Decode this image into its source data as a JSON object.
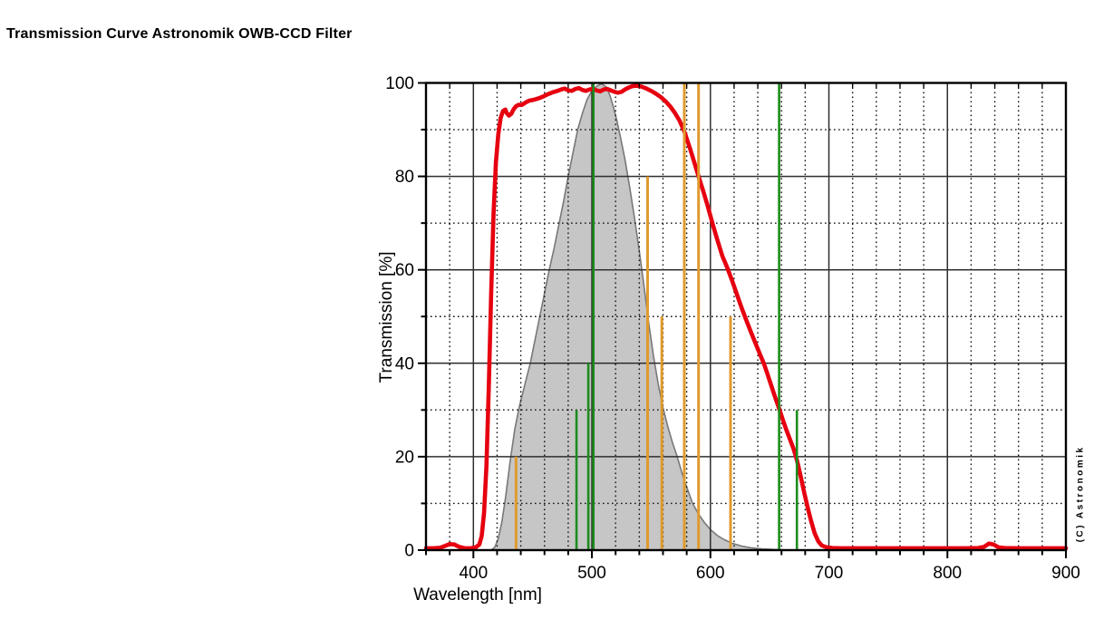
{
  "page": {
    "title": "Transmission Curve Astronomik OWB-CCD Filter",
    "copyright": "(C) Astronomik"
  },
  "chart_data": {
    "type": "line",
    "title": "Transmission Curve Astronomik OWB-CCD Filter",
    "xlabel": "Wavelength [nm]",
    "ylabel": "Transmission [%]",
    "xlim": [
      360,
      900
    ],
    "ylim": [
      0,
      100
    ],
    "x_major_ticks": [
      400,
      500,
      600,
      700,
      800,
      900
    ],
    "x_minor_step": 20,
    "y_major_ticks": [
      0,
      20,
      40,
      60,
      80,
      100
    ],
    "y_minor_step": 10,
    "grid": {
      "major": "solid",
      "minor": "dotted"
    },
    "legend": "none",
    "colors": {
      "red": "#e60010",
      "orange": "#e09a2e",
      "green": "#1d8c1d",
      "gray_fill": "#c6c6c6",
      "gray_stroke": "#787878",
      "grid_major": "#2e2e2e",
      "frame": "#000000"
    },
    "series": [
      {
        "name": "eye-sensitivity-curve",
        "type": "area",
        "fill": "#c6c6c6",
        "stroke": "#787878",
        "points": [
          [
            415,
            0
          ],
          [
            418,
            0.6
          ],
          [
            421,
            2.5
          ],
          [
            424,
            6
          ],
          [
            427,
            11
          ],
          [
            431,
            19
          ],
          [
            435,
            26
          ],
          [
            439,
            31
          ],
          [
            443,
            35
          ],
          [
            448,
            40
          ],
          [
            452,
            45
          ],
          [
            456,
            50
          ],
          [
            460,
            55
          ],
          [
            464,
            60
          ],
          [
            468,
            64.5
          ],
          [
            472,
            69.5
          ],
          [
            476,
            74.5
          ],
          [
            480,
            80
          ],
          [
            484,
            85
          ],
          [
            488,
            90
          ],
          [
            492,
            93.5
          ],
          [
            496,
            96.5
          ],
          [
            500,
            98.3
          ],
          [
            504,
            99.3
          ],
          [
            508,
            99.8
          ],
          [
            512,
            99.2
          ],
          [
            515,
            97.5
          ],
          [
            518,
            95
          ],
          [
            521,
            92
          ],
          [
            524,
            88.5
          ],
          [
            528,
            83.5
          ],
          [
            532,
            77.5
          ],
          [
            536,
            71
          ],
          [
            540,
            64
          ],
          [
            544,
            56.5
          ],
          [
            548,
            48.5
          ],
          [
            552,
            41.5
          ],
          [
            556,
            35.5
          ],
          [
            560,
            30.5
          ],
          [
            564,
            26.5
          ],
          [
            568,
            23
          ],
          [
            572,
            20
          ],
          [
            576,
            16.5
          ],
          [
            580,
            13.5
          ],
          [
            585,
            10
          ],
          [
            590,
            7.7
          ],
          [
            595,
            5.9
          ],
          [
            600,
            4.4
          ],
          [
            606,
            3.1
          ],
          [
            612,
            2.2
          ],
          [
            618,
            1.5
          ],
          [
            626,
            0.9
          ],
          [
            634,
            0.5
          ],
          [
            644,
            0.25
          ],
          [
            656,
            0.1
          ],
          [
            668,
            0
          ]
        ]
      },
      {
        "name": "filter-transmission",
        "type": "line",
        "color": "#e60010",
        "width": 4.6,
        "points": [
          [
            360,
            0.4
          ],
          [
            366,
            0.4
          ],
          [
            372,
            0.5
          ],
          [
            376,
            0.9
          ],
          [
            380,
            1.3
          ],
          [
            384,
            1.2
          ],
          [
            388,
            0.7
          ],
          [
            393,
            0.4
          ],
          [
            398,
            0.4
          ],
          [
            402,
            0.6
          ],
          [
            405,
            1.2
          ],
          [
            407,
            3
          ],
          [
            409,
            8
          ],
          [
            411,
            18
          ],
          [
            413,
            35
          ],
          [
            415,
            55
          ],
          [
            417,
            72
          ],
          [
            419,
            83
          ],
          [
            421,
            89
          ],
          [
            423,
            92.5
          ],
          [
            425,
            94
          ],
          [
            427,
            94.3
          ],
          [
            428,
            93.6
          ],
          [
            430,
            93
          ],
          [
            432,
            93.4
          ],
          [
            434,
            94.4
          ],
          [
            436,
            95
          ],
          [
            438,
            95.3
          ],
          [
            441,
            95.3
          ],
          [
            444,
            95.8
          ],
          [
            447,
            96.2
          ],
          [
            451,
            96.4
          ],
          [
            455,
            96.7
          ],
          [
            459,
            97.1
          ],
          [
            463,
            97.6
          ],
          [
            467,
            98
          ],
          [
            471,
            98.3
          ],
          [
            474,
            98.6
          ],
          [
            477,
            98.8
          ],
          [
            480,
            98.4
          ],
          [
            483,
            98.3
          ],
          [
            486,
            98.7
          ],
          [
            489,
            98.9
          ],
          [
            492,
            98.5
          ],
          [
            495,
            98.3
          ],
          [
            498,
            98.6
          ],
          [
            501,
            98.7
          ],
          [
            504,
            98.4
          ],
          [
            507,
            98.2
          ],
          [
            510,
            98.6
          ],
          [
            513,
            98.7
          ],
          [
            516,
            98.4
          ],
          [
            519,
            98.1
          ],
          [
            522,
            97.9
          ],
          [
            525,
            98.1
          ],
          [
            528,
            98.6
          ],
          [
            531,
            99
          ],
          [
            534,
            99.3
          ],
          [
            538,
            99.4
          ],
          [
            542,
            99.2
          ],
          [
            546,
            98.8
          ],
          [
            550,
            98.3
          ],
          [
            554,
            97.7
          ],
          [
            558,
            97
          ],
          [
            562,
            96.1
          ],
          [
            566,
            95
          ],
          [
            570,
            93.6
          ],
          [
            574,
            91.9
          ],
          [
            578,
            89.6
          ],
          [
            583,
            85.8
          ],
          [
            587,
            82.5
          ],
          [
            590,
            80
          ],
          [
            594,
            76.8
          ],
          [
            598,
            73.4
          ],
          [
            602,
            69.7
          ],
          [
            606,
            66.3
          ],
          [
            610,
            63
          ],
          [
            614,
            60.6
          ],
          [
            618,
            57.9
          ],
          [
            622,
            55
          ],
          [
            626,
            52.1
          ],
          [
            630,
            49.4
          ],
          [
            634,
            46.8
          ],
          [
            638,
            44.3
          ],
          [
            642,
            41.8
          ],
          [
            645,
            40
          ],
          [
            648,
            37.8
          ],
          [
            651,
            35.5
          ],
          [
            654,
            33.2
          ],
          [
            658,
            30.3
          ],
          [
            661,
            28
          ],
          [
            664,
            25.8
          ],
          [
            667,
            23.8
          ],
          [
            670,
            21.8
          ],
          [
            673,
            19.3
          ],
          [
            676,
            16
          ],
          [
            679,
            12.5
          ],
          [
            682,
            9.2
          ],
          [
            685,
            6.2
          ],
          [
            688,
            3.6
          ],
          [
            691,
            1.9
          ],
          [
            694,
            1
          ],
          [
            698,
            0.6
          ],
          [
            703,
            0.45
          ],
          [
            710,
            0.4
          ],
          [
            730,
            0.4
          ],
          [
            760,
            0.4
          ],
          [
            790,
            0.4
          ],
          [
            815,
            0.4
          ],
          [
            826,
            0.45
          ],
          [
            831,
            0.7
          ],
          [
            835,
            1.4
          ],
          [
            839,
            1.2
          ],
          [
            843,
            0.6
          ],
          [
            848,
            0.45
          ],
          [
            860,
            0.4
          ],
          [
            880,
            0.4
          ],
          [
            900,
            0.4
          ]
        ]
      }
    ],
    "emission_lines": [
      {
        "wavelength": 436,
        "height": 20,
        "color": "orange"
      },
      {
        "wavelength": 487,
        "height": 30,
        "color": "green"
      },
      {
        "wavelength": 497,
        "height": 40,
        "color": "green"
      },
      {
        "wavelength": 501.3,
        "height": 100,
        "color": "green"
      },
      {
        "wavelength": 547,
        "height": 80,
        "color": "orange"
      },
      {
        "wavelength": 559,
        "height": 50,
        "color": "orange"
      },
      {
        "wavelength": 578,
        "height": 100,
        "color": "orange"
      },
      {
        "wavelength": 590,
        "height": 100,
        "color": "orange"
      },
      {
        "wavelength": 617,
        "height": 50,
        "color": "orange"
      },
      {
        "wavelength": 658,
        "height": 100,
        "color": "green"
      },
      {
        "wavelength": 673,
        "height": 30,
        "color": "green"
      }
    ]
  }
}
